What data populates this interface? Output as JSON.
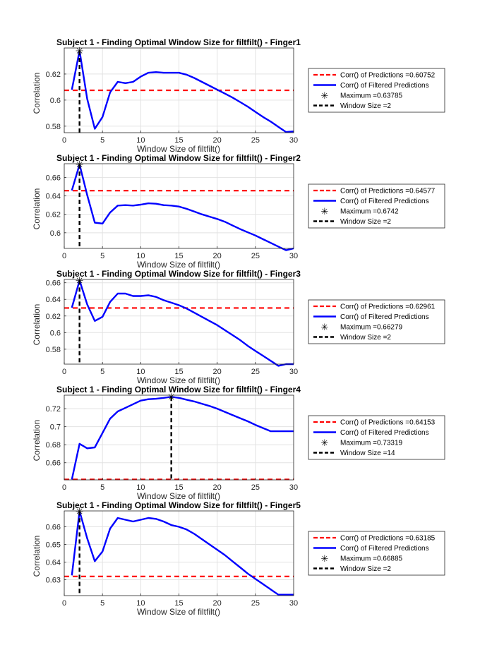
{
  "chart_data": [
    {
      "type": "line",
      "title": "Subject 1 - Finding Optimal Window Size for filtfilt() - Finger1",
      "xlabel": "Window Size of filtfilt()",
      "ylabel": "Correlation",
      "xlim": [
        0,
        30
      ],
      "ylim": [
        0.575,
        0.64
      ],
      "xticks": [
        0,
        5,
        10,
        15,
        20,
        25,
        30
      ],
      "yticks": [
        0.58,
        0.6,
        0.62
      ],
      "ytick_labels": [
        "0.58",
        "0.6",
        "0.62"
      ],
      "grid": true,
      "legend_position": "outside-right",
      "colors": {
        "filtered": "#0000ff",
        "predictions": "#ff0000",
        "optimum": "#000000"
      },
      "series": [
        {
          "name": "Corr() of Predictions =0.60752",
          "style": "dashed-red",
          "y": 0.60752
        },
        {
          "name": "Corr() of Filtered Predictions",
          "style": "solid-blue",
          "x": [
            1,
            2,
            3,
            4,
            5,
            6,
            7,
            8,
            9,
            10,
            11,
            12,
            13,
            14,
            15,
            16,
            17,
            18,
            19,
            20,
            21,
            22,
            23,
            24,
            25,
            26,
            27,
            28,
            29,
            30
          ],
          "y": [
            0.608,
            0.6379,
            0.601,
            0.578,
            0.587,
            0.606,
            0.614,
            0.613,
            0.614,
            0.618,
            0.621,
            0.6215,
            0.621,
            0.621,
            0.621,
            0.6195,
            0.617,
            0.614,
            0.611,
            0.608,
            0.605,
            0.602,
            0.5985,
            0.595,
            0.591,
            0.587,
            0.5835,
            0.5795,
            0.5755,
            0.576
          ]
        },
        {
          "name": "Maximum =0.63785",
          "style": "marker",
          "x": 2,
          "y": 0.63785
        },
        {
          "name": "Window Size =2",
          "style": "dashed-black",
          "x": 2
        }
      ]
    },
    {
      "type": "line",
      "title": "Subject 1 - Finding Optimal Window Size for filtfilt() - Finger2",
      "xlabel": "Window Size of filtfilt()",
      "ylabel": "Correlation",
      "xlim": [
        0,
        30
      ],
      "ylim": [
        0.583,
        0.675
      ],
      "xticks": [
        0,
        5,
        10,
        15,
        20,
        25,
        30
      ],
      "yticks": [
        0.6,
        0.62,
        0.64,
        0.66
      ],
      "ytick_labels": [
        "0.6",
        "0.62",
        "0.64",
        "0.66"
      ],
      "grid": true,
      "legend_position": "outside-right",
      "colors": {
        "filtered": "#0000ff",
        "predictions": "#ff0000",
        "optimum": "#000000"
      },
      "series": [
        {
          "name": "Corr() of Predictions =0.64577",
          "style": "dashed-red",
          "y": 0.64577
        },
        {
          "name": "Corr() of Filtered Predictions",
          "style": "solid-blue",
          "x": [
            1,
            2,
            3,
            4,
            5,
            6,
            7,
            8,
            9,
            10,
            11,
            12,
            13,
            14,
            15,
            16,
            17,
            18,
            19,
            20,
            21,
            22,
            23,
            24,
            25,
            26,
            27,
            28,
            29,
            30
          ],
          "y": [
            0.646,
            0.6742,
            0.641,
            0.611,
            0.61,
            0.622,
            0.6295,
            0.63,
            0.6295,
            0.6305,
            0.632,
            0.6315,
            0.63,
            0.6295,
            0.6285,
            0.626,
            0.623,
            0.62,
            0.6175,
            0.615,
            0.612,
            0.608,
            0.604,
            0.6005,
            0.597,
            0.593,
            0.589,
            0.585,
            0.581,
            0.583
          ]
        },
        {
          "name": "Maximum =0.6742",
          "style": "marker",
          "x": 2,
          "y": 0.6742
        },
        {
          "name": "Window Size =2",
          "style": "dashed-black",
          "x": 2
        }
      ]
    },
    {
      "type": "line",
      "title": "Subject 1 - Finding Optimal Window Size for filtfilt() - Finger3",
      "xlabel": "Window Size of filtfilt()",
      "ylabel": "Correlation",
      "xlim": [
        0,
        30
      ],
      "ylim": [
        0.562,
        0.664
      ],
      "xticks": [
        0,
        5,
        10,
        15,
        20,
        25,
        30
      ],
      "yticks": [
        0.58,
        0.6,
        0.62,
        0.64,
        0.66
      ],
      "ytick_labels": [
        "0.58",
        "0.6",
        "0.62",
        "0.64",
        "0.66"
      ],
      "grid": true,
      "legend_position": "outside-right",
      "colors": {
        "filtered": "#0000ff",
        "predictions": "#ff0000",
        "optimum": "#000000"
      },
      "series": [
        {
          "name": "Corr() of Predictions =0.62961",
          "style": "dashed-red",
          "y": 0.62961
        },
        {
          "name": "Corr() of Filtered Predictions",
          "style": "solid-blue",
          "x": [
            1,
            2,
            3,
            4,
            5,
            6,
            7,
            8,
            9,
            10,
            11,
            12,
            13,
            14,
            15,
            16,
            17,
            18,
            19,
            20,
            21,
            22,
            23,
            24,
            25,
            26,
            27,
            28,
            29,
            30
          ],
          "y": [
            0.63,
            0.6628,
            0.634,
            0.614,
            0.619,
            0.637,
            0.647,
            0.647,
            0.644,
            0.644,
            0.645,
            0.643,
            0.639,
            0.636,
            0.633,
            0.629,
            0.624,
            0.619,
            0.614,
            0.609,
            0.603,
            0.597,
            0.591,
            0.584,
            0.578,
            0.572,
            0.566,
            0.56,
            0.562,
            0.562
          ]
        },
        {
          "name": "Maximum =0.66279",
          "style": "marker",
          "x": 2,
          "y": 0.66279
        },
        {
          "name": "Window Size =2",
          "style": "dashed-black",
          "x": 2
        }
      ]
    },
    {
      "type": "line",
      "title": "Subject 1 - Finding Optimal Window Size for filtfilt() - Finger4",
      "xlabel": "Window Size of filtfilt()",
      "ylabel": "Correlation",
      "xlim": [
        0,
        30
      ],
      "ylim": [
        0.641,
        0.735
      ],
      "xticks": [
        0,
        5,
        10,
        15,
        20,
        25,
        30
      ],
      "yticks": [
        0.66,
        0.68,
        0.7,
        0.72
      ],
      "ytick_labels": [
        "0.66",
        "0.68",
        "0.7",
        "0.72"
      ],
      "grid": true,
      "legend_position": "outside-right",
      "colors": {
        "filtered": "#0000ff",
        "predictions": "#ff0000",
        "optimum": "#000000"
      },
      "series": [
        {
          "name": "Corr() of Predictions =0.64153",
          "style": "dashed-red",
          "y": 0.64153
        },
        {
          "name": "Corr() of Filtered Predictions",
          "style": "solid-blue",
          "x": [
            1,
            2,
            3,
            4,
            5,
            6,
            7,
            8,
            9,
            10,
            11,
            12,
            13,
            14,
            15,
            16,
            17,
            18,
            19,
            20,
            21,
            22,
            23,
            24,
            25,
            26,
            27,
            28,
            29,
            30
          ],
          "y": [
            0.6415,
            0.681,
            0.676,
            0.677,
            0.693,
            0.709,
            0.717,
            0.721,
            0.725,
            0.729,
            0.7305,
            0.731,
            0.732,
            0.7332,
            0.732,
            0.73,
            0.728,
            0.7255,
            0.723,
            0.72,
            0.7165,
            0.713,
            0.7095,
            0.706,
            0.702,
            0.6985,
            0.695,
            0.695,
            0.695,
            0.695
          ]
        },
        {
          "name": "Maximum =0.73319",
          "style": "marker",
          "x": 14,
          "y": 0.73319
        },
        {
          "name": "Window Size =14",
          "style": "dashed-black",
          "x": 14
        }
      ]
    },
    {
      "type": "line",
      "title": "Subject 1 - Finding Optimal Window Size for filtfilt() - Finger5",
      "xlabel": "Window Size of filtfilt()",
      "ylabel": "Correlation",
      "xlim": [
        0,
        30
      ],
      "ylim": [
        0.621,
        0.669
      ],
      "xticks": [
        0,
        5,
        10,
        15,
        20,
        25,
        30
      ],
      "yticks": [
        0.63,
        0.64,
        0.65,
        0.66
      ],
      "ytick_labels": [
        "0.63",
        "0.64",
        "0.65",
        "0.66"
      ],
      "grid": true,
      "legend_position": "outside-right",
      "colors": {
        "filtered": "#0000ff",
        "predictions": "#ff0000",
        "optimum": "#000000"
      },
      "series": [
        {
          "name": "Corr() of Predictions =0.63185",
          "style": "dashed-red",
          "y": 0.63185
        },
        {
          "name": "Corr() of Filtered Predictions",
          "style": "solid-blue",
          "x": [
            1,
            2,
            3,
            4,
            5,
            6,
            7,
            8,
            9,
            10,
            11,
            12,
            13,
            14,
            15,
            16,
            17,
            18,
            19,
            20,
            21,
            22,
            23,
            24,
            25,
            26,
            27,
            28,
            29,
            30
          ],
          "y": [
            0.6325,
            0.6689,
            0.6535,
            0.6405,
            0.646,
            0.659,
            0.665,
            0.664,
            0.663,
            0.664,
            0.665,
            0.6645,
            0.663,
            0.661,
            0.66,
            0.6585,
            0.656,
            0.653,
            0.65,
            0.647,
            0.644,
            0.6405,
            0.637,
            0.6335,
            0.6305,
            0.6275,
            0.6245,
            0.6215,
            0.6215,
            0.6215
          ]
        },
        {
          "name": "Maximum =0.66885",
          "style": "marker",
          "x": 2,
          "y": 0.66885
        },
        {
          "name": "Window Size =2",
          "style": "dashed-black",
          "x": 2
        }
      ]
    }
  ]
}
